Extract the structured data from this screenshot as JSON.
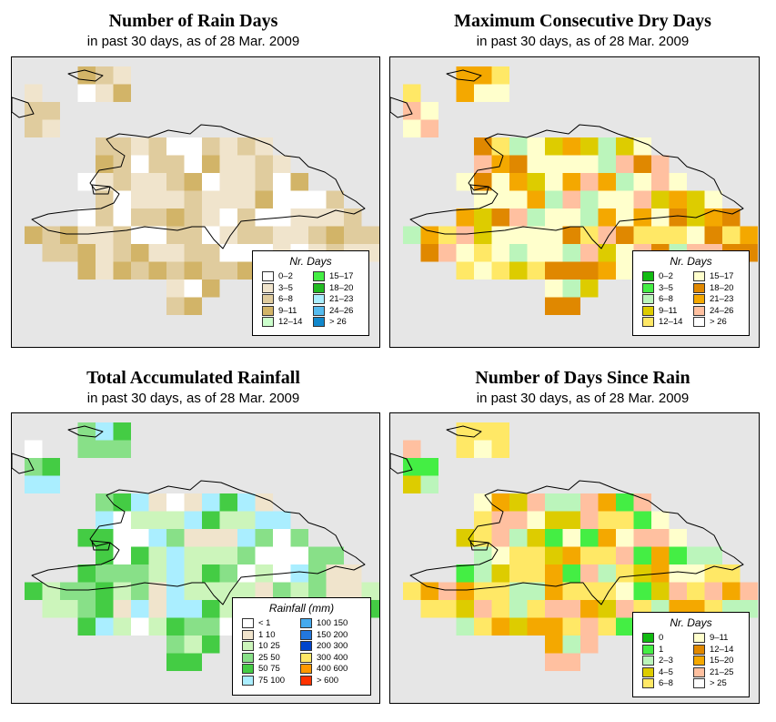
{
  "panels": [
    {
      "title": "Number of Rain Days",
      "subtitle": "in past 30 days, as of  28 Mar. 2009",
      "legend_title": "Nr. Days",
      "legend": [
        {
          "label": "0–2",
          "color": "#ffffff"
        },
        {
          "label": "3–5",
          "color": "#f0e4cc"
        },
        {
          "label": "6–8",
          "color": "#e0cc9e"
        },
        {
          "label": "9–11",
          "color": "#d2b468"
        },
        {
          "label": "12–14",
          "color": "#ccffcc"
        },
        {
          "label": "15–17",
          "color": "#44ee44"
        },
        {
          "label": "18–20",
          "color": "#22bb22"
        },
        {
          "label": "21–23",
          "color": "#aaeeff"
        },
        {
          "label": "24–26",
          "color": "#55bbee"
        },
        {
          "label": "> 26",
          "color": "#1188cc"
        }
      ]
    },
    {
      "title": "Maximum Consecutive Dry Days",
      "subtitle": "in past 30 days, as of  28 Mar. 2009",
      "legend_title": "Nr. Days",
      "legend": [
        {
          "label": "0–2",
          "color": "#11bb11"
        },
        {
          "label": "3–5",
          "color": "#44ee44"
        },
        {
          "label": "6–8",
          "color": "#bbf5bb"
        },
        {
          "label": "9–11",
          "color": "#ddcc00"
        },
        {
          "label": "12–14",
          "color": "#ffe866"
        },
        {
          "label": "15–17",
          "color": "#ffffcc"
        },
        {
          "label": "18–20",
          "color": "#e08800"
        },
        {
          "label": "21–23",
          "color": "#f4a800"
        },
        {
          "label": "24–26",
          "color": "#ffc0a0"
        },
        {
          "label": "> 26",
          "color": "#ffffff"
        }
      ]
    },
    {
      "title": "Total Accumulated Rainfall",
      "subtitle": "in past 30 days, as of  28 Mar. 2009",
      "legend_title": "Rainfall (mm)",
      "legend": [
        {
          "label": "< 1",
          "color": "#ffffff"
        },
        {
          "label": "1    10",
          "color": "#f0e4cc"
        },
        {
          "label": "10    25",
          "color": "#ccf5bb"
        },
        {
          "label": "25    50",
          "color": "#88e088"
        },
        {
          "label": "50    75",
          "color": "#44cc44"
        },
        {
          "label": "75  100",
          "color": "#aaeeff"
        },
        {
          "label": "100  150",
          "color": "#44aaee"
        },
        {
          "label": "150  200",
          "color": "#2277dd"
        },
        {
          "label": "200  300",
          "color": "#0044cc"
        },
        {
          "label": "300  400",
          "color": "#ffe866"
        },
        {
          "label": "400  600",
          "color": "#ff9900"
        },
        {
          "label": "> 600",
          "color": "#ff3300"
        }
      ]
    },
    {
      "title": "Number of Days Since Rain",
      "subtitle": "in past 30 days, as of  28 Mar. 2009",
      "legend_title": "Nr. Days",
      "legend": [
        {
          "label": "0",
          "color": "#11bb11"
        },
        {
          "label": "1",
          "color": "#44ee44"
        },
        {
          "label": "2–3",
          "color": "#bbf5bb"
        },
        {
          "label": "4–5",
          "color": "#ddcc00"
        },
        {
          "label": "6–8",
          "color": "#ffe866"
        },
        {
          "label": "9–11",
          "color": "#ffffcc"
        },
        {
          "label": "12–14",
          "color": "#e08800"
        },
        {
          "label": "15–20",
          "color": "#f4a800"
        },
        {
          "label": "21–25",
          "color": "#ffc0a0"
        },
        {
          "label": "> 25",
          "color": "#ffffff"
        }
      ]
    }
  ]
}
